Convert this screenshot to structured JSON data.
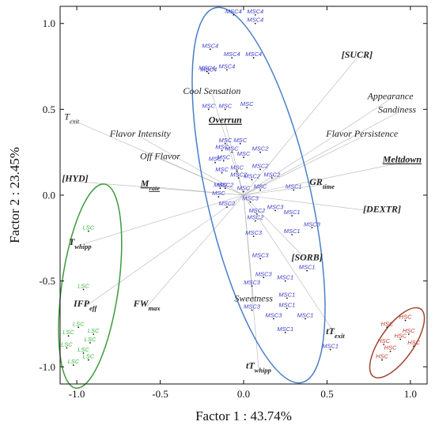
{
  "chart_data": {
    "type": "scatter",
    "title": "",
    "xlabel": "Factor 1 : 43.74%",
    "ylabel": "Factor 2 : 23.45%",
    "xlim": [
      -1.1,
      1.1
    ],
    "ylim": [
      -1.1,
      1.1
    ],
    "x_ticks": [
      {
        "value": -1.0,
        "label": "-1.0"
      },
      {
        "value": -0.5,
        "label": "-0.5"
      },
      {
        "value": 0.0,
        "label": "0.0"
      },
      {
        "value": 0.5,
        "label": "0.5"
      },
      {
        "value": 1.0,
        "label": "1.0"
      }
    ],
    "y_ticks": [
      {
        "value": 1.0,
        "label": "1.0"
      },
      {
        "value": 0.5,
        "label": "0.5"
      },
      {
        "value": 0.0,
        "label": "0.0"
      },
      {
        "value": -0.5,
        "label": "-0.5"
      },
      {
        "value": -1.0,
        "label": "-1.0"
      }
    ],
    "grid": false,
    "colors": {
      "msc": "#3a3ad0",
      "lsc": "#3cb43c",
      "hsc": "#c0392b",
      "blue_ellipse": "#4a7fc8",
      "green_ellipse": "#3d9a3d",
      "red_ellipse": "#a0452f",
      "vector": "#b4b4b4"
    },
    "variables": [
      {
        "label": "[SUCR]",
        "x": 0.68,
        "y": 0.8,
        "bold": true,
        "underline": false
      },
      {
        "label": "Appearance",
        "x": 0.88,
        "y": 0.56,
        "bold": false,
        "underline": false
      },
      {
        "label": "Sandiness",
        "x": 0.92,
        "y": 0.48,
        "bold": false,
        "underline": false
      },
      {
        "label": "Cool Sensation",
        "x": -0.19,
        "y": 0.59,
        "bold": false,
        "underline": false
      },
      {
        "label": "T",
        "sub": "exit",
        "x": -1.03,
        "y": 0.44,
        "bold": false,
        "underline": false
      },
      {
        "label": "Overrun",
        "x": -0.11,
        "y": 0.42,
        "bold": true,
        "underline": true
      },
      {
        "label": "Flavor Intensity",
        "x": -0.62,
        "y": 0.34,
        "bold": false,
        "underline": false
      },
      {
        "label": "Flavor Persistence",
        "x": 0.71,
        "y": 0.34,
        "bold": false,
        "underline": false
      },
      {
        "label": "Off Flavor",
        "x": -0.5,
        "y": 0.21,
        "bold": false,
        "underline": false
      },
      {
        "label": "Meltdown",
        "x": 0.95,
        "y": 0.19,
        "bold": true,
        "underline": true
      },
      {
        "label": "[HYD]",
        "x": -1.01,
        "y": 0.08,
        "bold": true,
        "underline": false
      },
      {
        "label": "M",
        "sub": "rate",
        "x": -0.56,
        "y": 0.05,
        "bold": true,
        "underline": true
      },
      {
        "label": "GR",
        "sub": "time",
        "x": 0.47,
        "y": 0.06,
        "bold": true,
        "underline": false
      },
      {
        "label": "[DEXTR]",
        "x": 0.83,
        "y": -0.1,
        "bold": true,
        "underline": false
      },
      {
        "label": "T",
        "sub": "whipp",
        "x": -0.98,
        "y": -0.29,
        "bold": true,
        "underline": false
      },
      {
        "label": "[SORB]",
        "x": 0.38,
        "y": -0.38,
        "bold": true,
        "underline": false
      },
      {
        "label": "IFP",
        "sub": "eff",
        "x": -0.95,
        "y": -0.65,
        "bold": true,
        "underline": false
      },
      {
        "label": "Sweetness",
        "x": 0.06,
        "y": -0.62,
        "bold": false,
        "underline": false
      },
      {
        "label": "FW",
        "sub": "max",
        "x": -0.58,
        "y": -0.65,
        "bold": true,
        "underline": false
      },
      {
        "label": "tT",
        "sub": "exit",
        "x": 0.55,
        "y": -0.81,
        "bold": true,
        "underline": false
      },
      {
        "label": "tT",
        "sub": "whipp",
        "x": 0.09,
        "y": -1.01,
        "bold": true,
        "underline": false
      }
    ],
    "series": [
      {
        "name": "MSC4",
        "color": "#3a3ad0",
        "points": [
          {
            "x": -0.06,
            "y": 1.05,
            "label": "MSC4"
          },
          {
            "x": 0.07,
            "y": 1.05,
            "label": "MSC4"
          },
          {
            "x": 0.07,
            "y": 1.0,
            "label": "MSC4"
          },
          {
            "x": -0.2,
            "y": 0.85,
            "label": "MSC4"
          },
          {
            "x": -0.07,
            "y": 0.8,
            "label": "MSC4"
          },
          {
            "x": 0.06,
            "y": 0.8,
            "label": "MSC4"
          },
          {
            "x": -0.21,
            "y": 0.71,
            "label": "MSC4"
          },
          {
            "x": -0.1,
            "y": 0.73,
            "label": "MSC4"
          },
          {
            "x": -0.22,
            "y": 0.72,
            "label": "MSC4"
          }
        ]
      },
      {
        "name": "MSC",
        "color": "#3a3ad0",
        "points": [
          {
            "x": -0.21,
            "y": 0.5,
            "label": "MSC"
          },
          {
            "x": -0.11,
            "y": 0.5,
            "label": "MSC"
          },
          {
            "x": 0.02,
            "y": 0.51,
            "label": "MSC"
          },
          {
            "x": -0.11,
            "y": 0.3,
            "label": "MSC"
          },
          {
            "x": -0.02,
            "y": 0.3,
            "label": "MSC"
          },
          {
            "x": -0.13,
            "y": 0.26,
            "label": "MSC"
          },
          {
            "x": -0.07,
            "y": 0.25,
            "label": "MSC"
          },
          {
            "x": -0.17,
            "y": 0.19,
            "label": "MSC"
          },
          {
            "x": -0.12,
            "y": 0.2,
            "label": "MSC"
          },
          {
            "x": 0.0,
            "y": 0.22,
            "label": "MSC"
          },
          {
            "x": -0.13,
            "y": 0.13,
            "label": "MSC"
          },
          {
            "x": -0.04,
            "y": 0.14,
            "label": "MSC"
          },
          {
            "x": -0.14,
            "y": 0.04,
            "label": "MSC"
          },
          {
            "x": 0.0,
            "y": 0.02,
            "label": "MSC"
          },
          {
            "x": 0.1,
            "y": 0.03,
            "label": "MSC"
          },
          {
            "x": -0.15,
            "y": -0.01,
            "label": "MSC"
          }
        ]
      },
      {
        "name": "MSC2",
        "color": "#3a3ad0",
        "points": [
          {
            "x": 0.1,
            "y": 0.25,
            "label": "MSC2"
          },
          {
            "x": 0.1,
            "y": 0.15,
            "label": "MSC2"
          },
          {
            "x": -0.03,
            "y": 0.1,
            "label": "MSC2"
          },
          {
            "x": 0.05,
            "y": 0.09,
            "label": "MSC2"
          },
          {
            "x": 0.17,
            "y": 0.1,
            "label": "MSC2"
          },
          {
            "x": -0.11,
            "y": 0.04,
            "label": "MSC2"
          },
          {
            "x": -0.1,
            "y": -0.07,
            "label": "MSC2"
          },
          {
            "x": 0.08,
            "y": -0.11,
            "label": "MSC2"
          },
          {
            "x": 0.07,
            "y": -0.15,
            "label": "MSC2"
          }
        ]
      },
      {
        "name": "MSC3",
        "color": "#3a3ad0",
        "points": [
          {
            "x": 0.04,
            "y": -0.04,
            "label": "MSC3"
          },
          {
            "x": 0.19,
            "y": -0.09,
            "label": "MSC3"
          },
          {
            "x": 0.41,
            "y": -0.19,
            "label": "MSC3"
          },
          {
            "x": 0.06,
            "y": -0.24,
            "label": "MSC3"
          },
          {
            "x": 0.1,
            "y": -0.37,
            "label": "MSC3"
          },
          {
            "x": 0.12,
            "y": -0.48,
            "label": "MSC3"
          },
          {
            "x": 0.05,
            "y": -0.53,
            "label": "MSC3"
          },
          {
            "x": 0.05,
            "y": -0.67,
            "label": "MSC3"
          },
          {
            "x": 0.18,
            "y": -0.72,
            "label": "MSC3"
          }
        ]
      },
      {
        "name": "MSC1",
        "color": "#3a3ad0",
        "points": [
          {
            "x": 0.3,
            "y": 0.03,
            "label": "MSC1"
          },
          {
            "x": 0.29,
            "y": -0.12,
            "label": "MSC1"
          },
          {
            "x": 0.29,
            "y": -0.23,
            "label": "MSC1"
          },
          {
            "x": 0.38,
            "y": -0.44,
            "label": "MSC1"
          },
          {
            "x": 0.25,
            "y": -0.5,
            "label": "MSC1"
          },
          {
            "x": 0.26,
            "y": -0.6,
            "label": "MSC1"
          },
          {
            "x": 0.26,
            "y": -0.66,
            "label": "MSC1"
          },
          {
            "x": 0.37,
            "y": -0.72,
            "label": "MSC1"
          },
          {
            "x": 0.25,
            "y": -0.8,
            "label": "MSC1"
          },
          {
            "x": 0.52,
            "y": -0.9,
            "label": "MSC1"
          }
        ]
      },
      {
        "name": "LSC",
        "color": "#3cb43c",
        "points": [
          {
            "x": -0.93,
            "y": -0.21,
            "label": "LSC"
          },
          {
            "x": -0.96,
            "y": -0.55,
            "label": "LSC"
          },
          {
            "x": -0.99,
            "y": -0.77,
            "label": "LSC"
          },
          {
            "x": -1.05,
            "y": -0.82,
            "label": "LSC"
          },
          {
            "x": -0.9,
            "y": -0.81,
            "label": "LSC"
          },
          {
            "x": -0.92,
            "y": -0.86,
            "label": "LSC"
          },
          {
            "x": -1.06,
            "y": -0.89,
            "label": "LSC"
          },
          {
            "x": -0.96,
            "y": -0.92,
            "label": "LSC"
          },
          {
            "x": -0.93,
            "y": -0.96,
            "label": "LSC"
          },
          {
            "x": -1.02,
            "y": -0.99,
            "label": "LSC"
          }
        ]
      },
      {
        "name": "HSC",
        "color": "#c0392b",
        "points": [
          {
            "x": 0.97,
            "y": -0.73,
            "label": "HSC"
          },
          {
            "x": 0.86,
            "y": -0.77,
            "label": "HSC"
          },
          {
            "x": 0.99,
            "y": -0.81,
            "label": "HSC"
          },
          {
            "x": 0.94,
            "y": -0.84,
            "label": "HSC"
          },
          {
            "x": 0.84,
            "y": -0.87,
            "label": "HSC"
          },
          {
            "x": 0.88,
            "y": -0.91,
            "label": "HSC"
          },
          {
            "x": 1.02,
            "y": -0.88,
            "label": "HSC"
          },
          {
            "x": 0.83,
            "y": -0.96,
            "label": "HSC"
          }
        ]
      }
    ],
    "ellipses": [
      {
        "name": "MSC",
        "cx": 0.09,
        "cy": 0.0,
        "rx": 0.31,
        "ry": 1.12,
        "rotate": -13,
        "color": "#4a7fc8"
      },
      {
        "name": "LSC",
        "cx": -0.92,
        "cy": -0.53,
        "rx": 0.17,
        "ry": 0.6,
        "rotate": 8,
        "color": "#3d9a3d"
      },
      {
        "name": "HSC",
        "cx": 0.92,
        "cy": -0.86,
        "rx": 0.1,
        "ry": 0.24,
        "rotate": 35,
        "color": "#a0452f"
      }
    ]
  }
}
